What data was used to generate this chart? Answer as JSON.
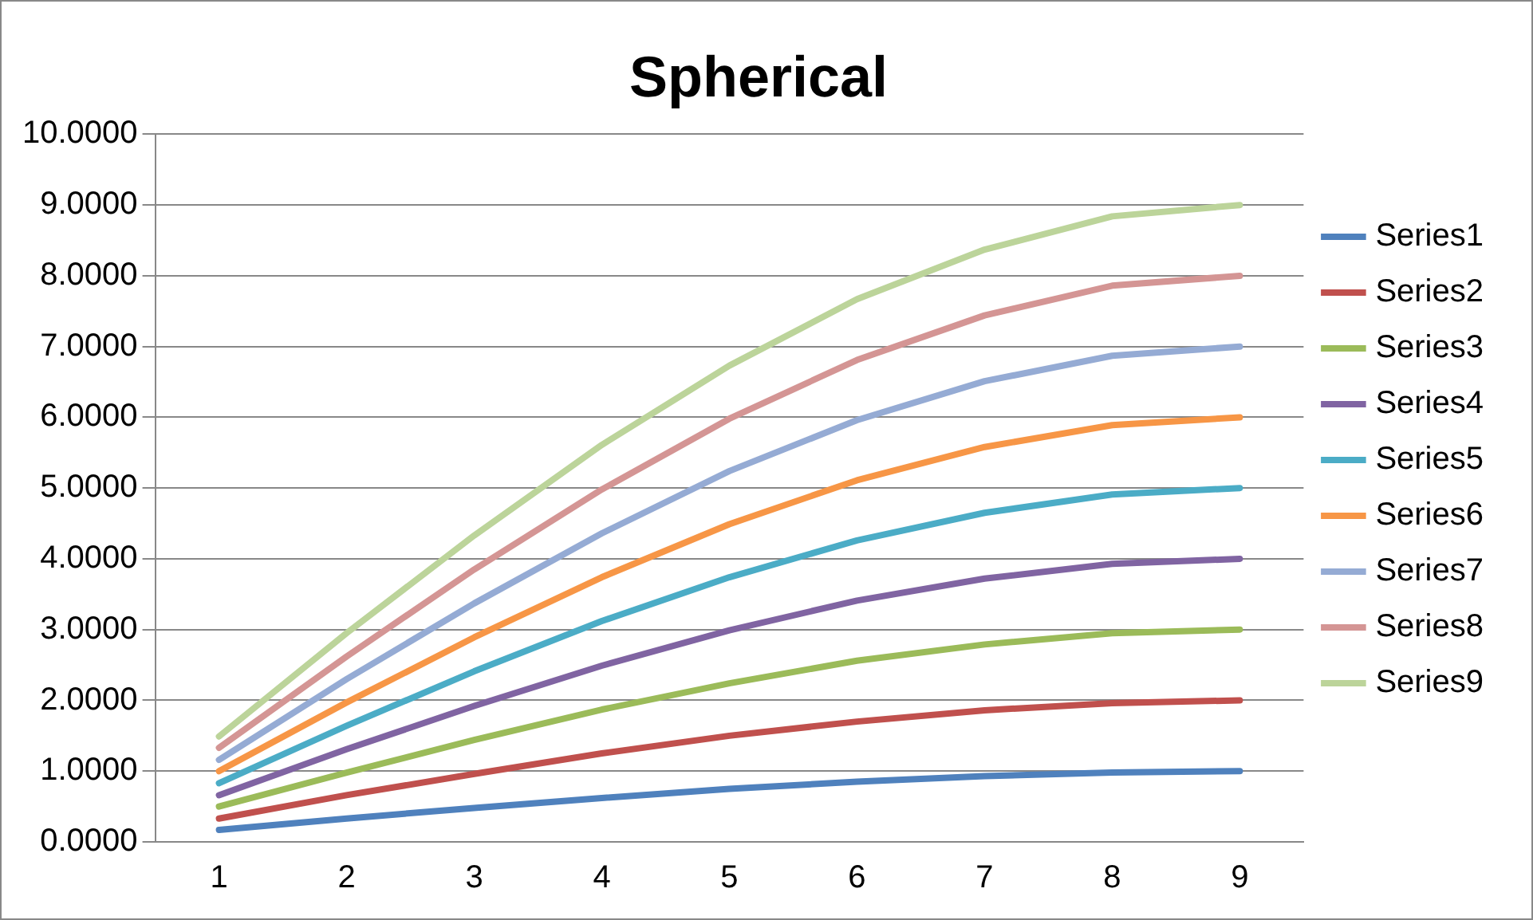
{
  "chart_data": {
    "type": "line",
    "title": "Spherical",
    "categories": [
      "1",
      "2",
      "3",
      "4",
      "5",
      "6",
      "7",
      "8",
      "9"
    ],
    "series": [
      {
        "name": "Series1",
        "color": "#4f81bd",
        "values": [
          0.17,
          0.33,
          0.48,
          0.62,
          0.75,
          0.85,
          0.93,
          0.98,
          1.0
        ]
      },
      {
        "name": "Series2",
        "color": "#c0504d",
        "values": [
          0.33,
          0.66,
          0.96,
          1.25,
          1.5,
          1.7,
          1.86,
          1.96,
          2.0
        ]
      },
      {
        "name": "Series3",
        "color": "#9bbb59",
        "values": [
          0.5,
          0.98,
          1.44,
          1.87,
          2.24,
          2.56,
          2.79,
          2.95,
          3.0
        ]
      },
      {
        "name": "Series4",
        "color": "#8064a2",
        "values": [
          0.66,
          1.31,
          1.92,
          2.49,
          2.99,
          3.41,
          3.72,
          3.93,
          4.0
        ]
      },
      {
        "name": "Series5",
        "color": "#4bacc6",
        "values": [
          0.83,
          1.64,
          2.41,
          3.12,
          3.74,
          4.26,
          4.65,
          4.91,
          5.0
        ]
      },
      {
        "name": "Series6",
        "color": "#f79646",
        "values": [
          1.0,
          1.97,
          2.89,
          3.74,
          4.49,
          5.11,
          5.58,
          5.89,
          6.0
        ]
      },
      {
        "name": "Series7",
        "color": "#95abd4",
        "values": [
          1.16,
          2.3,
          3.37,
          4.36,
          5.24,
          5.96,
          6.51,
          6.87,
          7.0
        ]
      },
      {
        "name": "Series8",
        "color": "#d49594",
        "values": [
          1.33,
          2.62,
          3.85,
          4.98,
          5.98,
          6.81,
          7.44,
          7.86,
          8.0
        ]
      },
      {
        "name": "Series9",
        "color": "#bcd49a",
        "values": [
          1.49,
          2.95,
          4.33,
          5.61,
          6.73,
          7.67,
          8.37,
          8.84,
          9.0
        ]
      }
    ],
    "ylim": [
      0,
      10
    ],
    "yticks": [
      {
        "value": 0,
        "label": "0.0000"
      },
      {
        "value": 1,
        "label": "1.0000"
      },
      {
        "value": 2,
        "label": "2.0000"
      },
      {
        "value": 3,
        "label": "3.0000"
      },
      {
        "value": 4,
        "label": "4.0000"
      },
      {
        "value": 5,
        "label": "5.0000"
      },
      {
        "value": 6,
        "label": "6.0000"
      },
      {
        "value": 7,
        "label": "7.0000"
      },
      {
        "value": 8,
        "label": "8.0000"
      },
      {
        "value": 9,
        "label": "9.0000"
      },
      {
        "value": 10,
        "label": "10.0000"
      }
    ],
    "grid": "y",
    "legend": "right",
    "marker": "none",
    "line_style": "solid"
  }
}
